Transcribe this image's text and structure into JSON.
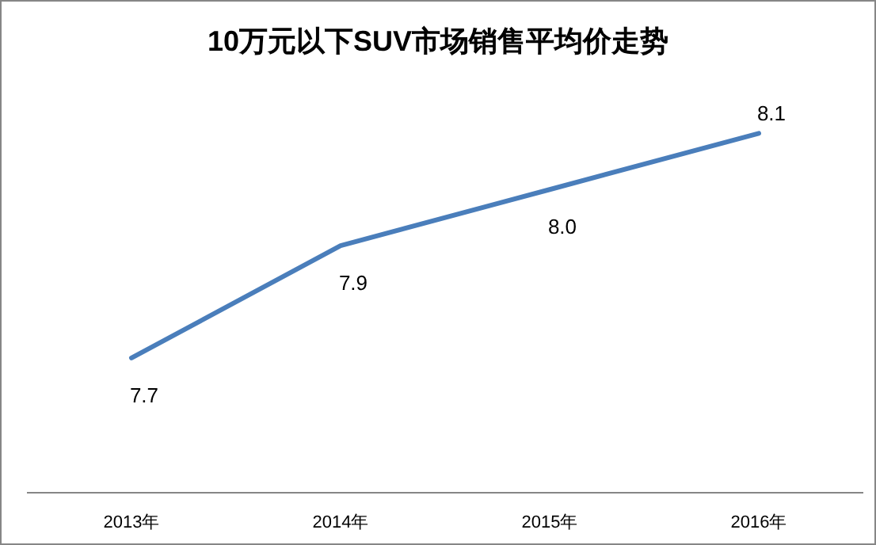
{
  "chart_data": {
    "type": "line",
    "title": "10万元以下SUV市场销售平均价走势",
    "categories": [
      "2013年",
      "2014年",
      "2015年",
      "2016年"
    ],
    "series": [
      {
        "color": "#4a7ebb",
        "values": [
          7.7,
          7.9,
          8.0,
          8.1
        ],
        "value_labels": [
          "7.7",
          "7.9",
          "8.0",
          "8.1"
        ]
      }
    ],
    "marker": "none",
    "line_style": "solid"
  }
}
